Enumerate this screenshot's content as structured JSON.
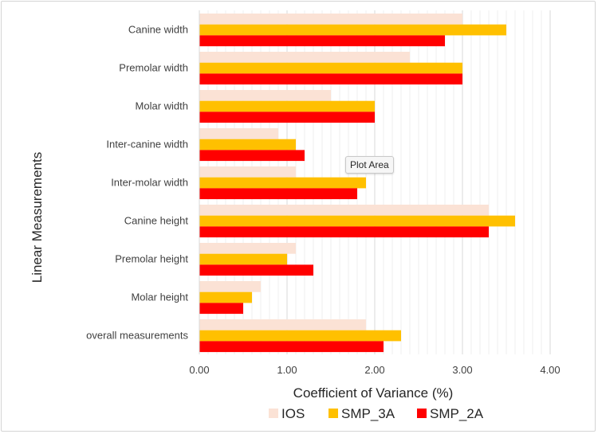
{
  "chart_data": {
    "type": "bar",
    "orientation": "horizontal",
    "categories": [
      "Canine width",
      "Premolar width",
      "Molar width",
      "Inter-canine width",
      "Inter-molar width",
      "Canine height",
      "Premolar height",
      "Molar height",
      "overall measurements"
    ],
    "series": [
      {
        "name": "IOS",
        "color": "#fbe2d5",
        "values": [
          3.0,
          2.4,
          1.5,
          0.9,
          1.1,
          3.3,
          1.1,
          0.7,
          1.9
        ]
      },
      {
        "name": "SMP_3A",
        "color": "#ffc000",
        "values": [
          3.5,
          3.0,
          2.0,
          1.1,
          1.9,
          3.6,
          1.0,
          0.6,
          2.3
        ]
      },
      {
        "name": "SMP_2A",
        "color": "#ff0000",
        "values": [
          2.8,
          3.0,
          2.0,
          1.2,
          1.8,
          3.3,
          1.3,
          0.5,
          2.1
        ]
      }
    ],
    "xlim": [
      0,
      4
    ],
    "xticks": [
      "0.00",
      "1.00",
      "2.00",
      "3.00",
      "4.00"
    ],
    "xlabel": "Coefficient of Variance (%)",
    "ylabel": "Linear Measurements",
    "grid": "vertical",
    "legend": "bottom"
  },
  "tooltip": {
    "text": "Plot Area"
  }
}
